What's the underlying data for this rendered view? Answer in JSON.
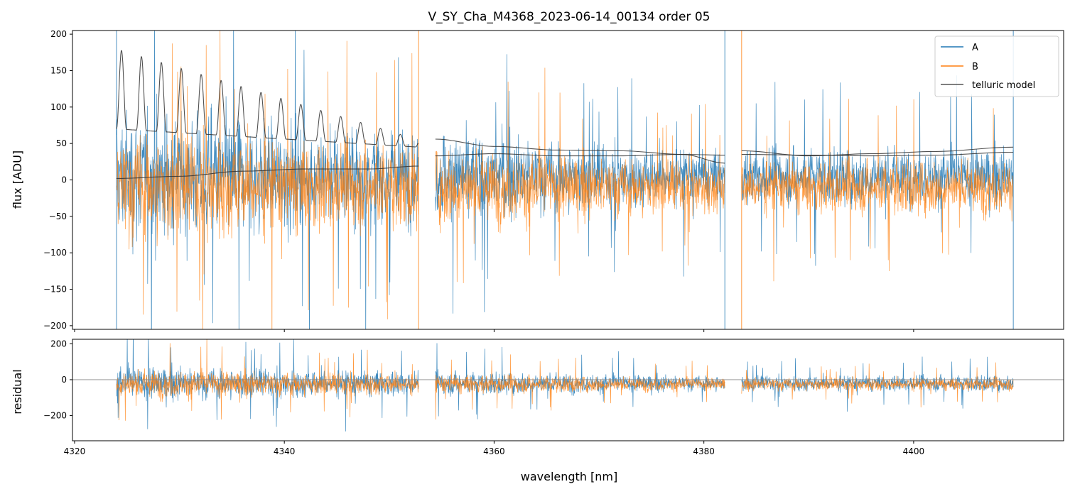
{
  "chart_data": {
    "type": "line",
    "title": "V_SY_Cha_M4368_2023-06-14_00134  order 05",
    "xlabel": "wavelength [nm]",
    "xlim": [
      4319.8,
      4414.3
    ],
    "x_ticks": [
      4320,
      4340,
      4360,
      4380,
      4400
    ],
    "segments": [
      [
        4324.0,
        4352.8
      ],
      [
        4354.4,
        4382.0
      ],
      [
        4383.6,
        4409.5
      ]
    ],
    "legend": {
      "position": "top-right",
      "entries": [
        "A",
        "B",
        "telluric model"
      ]
    },
    "colors": {
      "A": "#1f77b4",
      "B": "#ff7f0e",
      "telluric model": "#333333",
      "zero_line": "#888888"
    },
    "panels": [
      {
        "name": "spectrum",
        "ylabel": "flux [ADU]",
        "ylim": [
          -205,
          205
        ],
        "y_ticks": [
          -200,
          -150,
          -100,
          -50,
          0,
          50,
          100,
          150,
          200
        ],
        "series": [
          {
            "name": "A",
            "kind": "noisy-spectrum",
            "noise_sigma_blue": 110,
            "noise_sigma_red": 48,
            "offset": 5
          },
          {
            "name": "B",
            "kind": "noisy-spectrum",
            "noise_sigma_blue": 95,
            "noise_sigma_red": 45,
            "offset": -10
          },
          {
            "name": "telluric model",
            "kind": "model-curves",
            "fringe_segment": {
              "x": [
                4324,
                4352.8
              ],
              "baseline": [
                70,
                45
              ],
              "fringe_amplitude": [
                110,
                10
              ],
              "fringe_period": 1.9
            },
            "smooth_curves": [
              {
                "x": [
                  4324,
                  4330,
                  4336,
                  4342,
                  4348,
                  4352.8
                ],
                "y": [
                  2,
                  5,
                  12,
                  15,
                  15,
                  19
                ]
              },
              {
                "x": [
                  4354.4,
                  4360,
                  4366,
                  4372,
                  4378,
                  4382
                ],
                "y": [
                  56,
                  46,
                  41,
                  40,
                  35,
                  23
                ]
              },
              {
                "x": [
                  4354.4,
                  4360,
                  4366,
                  4372,
                  4378,
                  4382
                ],
                "y": [
                  33,
                  36,
                  33,
                  33,
                  35,
                  34
                ]
              },
              {
                "x": [
                  4383.6,
                  4390,
                  4396,
                  4402,
                  4409.5
                ],
                "y": [
                  40,
                  33,
                  36,
                  39,
                  45
                ]
              },
              {
                "x": [
                  4383.6,
                  4390,
                  4396,
                  4402,
                  4409.5
                ],
                "y": [
                  35,
                  34,
                  33,
                  34,
                  38
                ]
              }
            ]
          }
        ]
      },
      {
        "name": "residual",
        "ylabel": "residual",
        "ylim": [
          -340,
          225
        ],
        "y_ticks": [
          -200,
          0,
          200
        ],
        "zero_line": 0,
        "series": [
          {
            "name": "A",
            "kind": "noisy-residual",
            "noise_sigma_blue": 120,
            "noise_sigma_red": 55,
            "offset": -20
          },
          {
            "name": "B",
            "kind": "noisy-residual",
            "noise_sigma_blue": 100,
            "noise_sigma_red": 45,
            "offset": -25
          }
        ]
      }
    ]
  }
}
